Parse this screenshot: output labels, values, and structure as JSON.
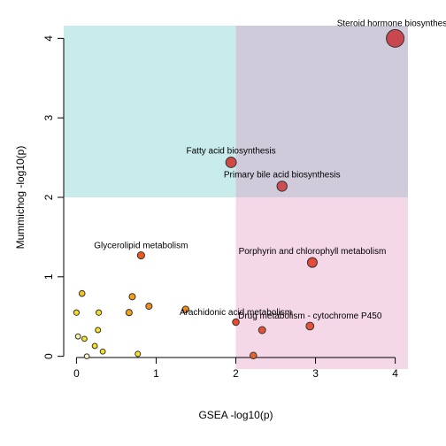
{
  "chart_data": {
    "type": "scatter",
    "title": "",
    "xlabel": "GSEA -log10(p)",
    "ylabel": "Mummichog -log10(p)",
    "xlim": [
      -0.16,
      4.16
    ],
    "ylim": [
      -0.16,
      4.16
    ],
    "xticks": [
      0,
      1,
      2,
      3,
      4
    ],
    "yticks": [
      0,
      1,
      2,
      3,
      4
    ],
    "grid": false,
    "legend": "none",
    "quadrants": [
      {
        "name": "top-left",
        "x": [
          -0.16,
          2
        ],
        "y": [
          2,
          4.16
        ],
        "color": "#c8eceb"
      },
      {
        "name": "top-right",
        "x": [
          2,
          4.16
        ],
        "y": [
          2,
          4.16
        ],
        "color": "#cfcbdb"
      },
      {
        "name": "bottom-right",
        "x": [
          2,
          4.16
        ],
        "y": [
          -0.16,
          2
        ],
        "color": "#f4d8e7"
      }
    ],
    "points": [
      {
        "x": 4.0,
        "y": 4.0,
        "size": 1.0,
        "color": "#c9474e",
        "label": "Steroid hormone biosynthesis"
      },
      {
        "x": 1.94,
        "y": 2.44,
        "size": 0.62,
        "color": "#cf4a44",
        "label": "Fatty acid biosynthesis"
      },
      {
        "x": 2.58,
        "y": 2.14,
        "size": 0.6,
        "color": "#cf4d52",
        "label": "Primary bile acid biosynthesis"
      },
      {
        "x": 0.81,
        "y": 1.27,
        "size": 0.45,
        "color": "#e85a1e",
        "label": "Glycerolipid metabolism"
      },
      {
        "x": 2.96,
        "y": 1.18,
        "size": 0.58,
        "color": "#e64a3a",
        "label": "Porphyrin and chlorophyll metabolism"
      },
      {
        "x": 2.0,
        "y": 0.43,
        "size": 0.42,
        "color": "#e84a2a",
        "label": "Arachidonic acid metabolism"
      },
      {
        "x": 2.93,
        "y": 0.38,
        "size": 0.48,
        "color": "#e6503c",
        "label": "Drug metabolism - cytochrome P450"
      },
      {
        "x": 2.33,
        "y": 0.33,
        "size": 0.44,
        "color": "#e64f35",
        "label": ""
      },
      {
        "x": 2.22,
        "y": 0.01,
        "size": 0.42,
        "color": "#e8642c",
        "label": ""
      },
      {
        "x": 1.37,
        "y": 0.59,
        "size": 0.42,
        "color": "#f08a18",
        "label": ""
      },
      {
        "x": 0.91,
        "y": 0.63,
        "size": 0.4,
        "color": "#f08a18",
        "label": ""
      },
      {
        "x": 0.7,
        "y": 0.75,
        "size": 0.4,
        "color": "#f2a216",
        "label": ""
      },
      {
        "x": 0.66,
        "y": 0.55,
        "size": 0.4,
        "color": "#f2a216",
        "label": ""
      },
      {
        "x": 0.07,
        "y": 0.79,
        "size": 0.38,
        "color": "#f4c21c",
        "label": ""
      },
      {
        "x": 0.0,
        "y": 0.55,
        "size": 0.36,
        "color": "#f7dc1e",
        "label": ""
      },
      {
        "x": 0.28,
        "y": 0.55,
        "size": 0.36,
        "color": "#f7dc1e",
        "label": ""
      },
      {
        "x": 0.27,
        "y": 0.33,
        "size": 0.35,
        "color": "#f7e31e",
        "label": ""
      },
      {
        "x": 0.02,
        "y": 0.25,
        "size": 0.34,
        "color": "#fbf1a8",
        "label": ""
      },
      {
        "x": 0.1,
        "y": 0.22,
        "size": 0.34,
        "color": "#f7e31e",
        "label": ""
      },
      {
        "x": 0.23,
        "y": 0.13,
        "size": 0.34,
        "color": "#f7e31e",
        "label": ""
      },
      {
        "x": 0.33,
        "y": 0.06,
        "size": 0.34,
        "color": "#f7e31e",
        "label": ""
      },
      {
        "x": 0.13,
        "y": 0.0,
        "size": 0.33,
        "color": "#fdf7c8",
        "label": ""
      },
      {
        "x": 0.77,
        "y": 0.03,
        "size": 0.35,
        "color": "#f7e31e",
        "label": ""
      }
    ]
  }
}
